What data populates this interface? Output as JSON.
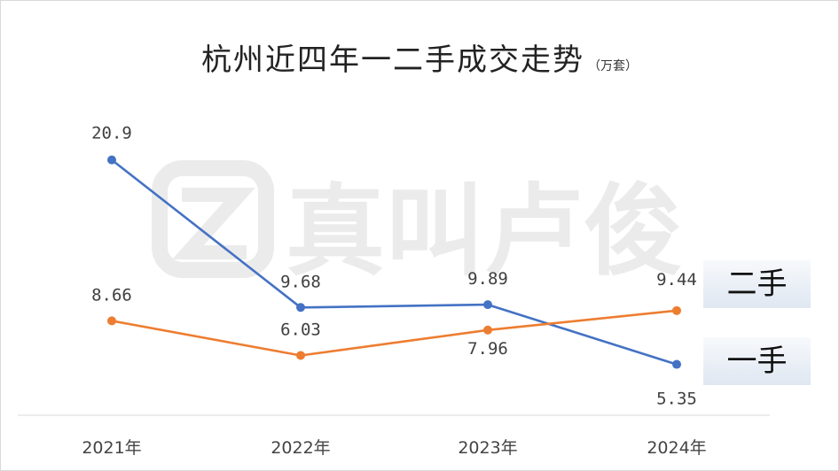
{
  "title": "杭州近四年一二手成交走势",
  "unit": "（万套）",
  "watermark": "真叫卢俊",
  "labels": {
    "second_hand": "二手",
    "first_hand": "一手"
  },
  "chart_data": {
    "type": "line",
    "title": "杭州近四年一二手成交走势",
    "categories": [
      "2021年",
      "2022年",
      "2023年",
      "2024年"
    ],
    "series": [
      {
        "name": "一手",
        "color": "#4472c4",
        "values": [
          20.9,
          9.68,
          9.89,
          5.35
        ],
        "labels": [
          "20.9",
          "9.68",
          "9.89",
          "5.35"
        ]
      },
      {
        "name": "二手",
        "color": "#ed7d31",
        "values": [
          8.66,
          6.03,
          7.96,
          9.44
        ],
        "labels": [
          "8.66",
          "6.03",
          "7.96",
          "9.44"
        ]
      }
    ],
    "grid": false,
    "legend": "right"
  }
}
